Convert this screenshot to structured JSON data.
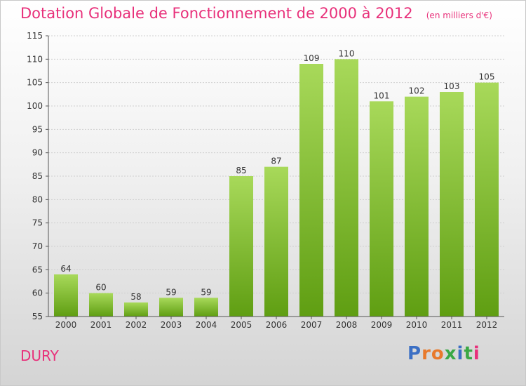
{
  "commune": "DURY",
  "brand": {
    "letters": [
      "P",
      "r",
      "o",
      "x",
      "i",
      "t",
      "i"
    ],
    "colors": [
      "#3b6fc4",
      "#e8792b",
      "#e8792b",
      "#3aa845",
      "#3b6fc4",
      "#3aa845",
      "#e8307a"
    ]
  },
  "colors": {
    "bar_top": "#a8d95a",
    "bar_bottom": "#5f9e12",
    "title": "#e8307a",
    "grid": "#cfcfcf"
  },
  "chart_data": {
    "type": "bar",
    "title": "Dotation Globale de Fonctionnement de 2000 à 2012",
    "subtitle": "(en milliers d'€)",
    "xlabel": "",
    "ylabel": "",
    "categories": [
      "2000",
      "2001",
      "2002",
      "2003",
      "2004",
      "2005",
      "2006",
      "2007",
      "2008",
      "2009",
      "2010",
      "2011",
      "2012"
    ],
    "values": [
      64,
      60,
      58,
      59,
      59,
      85,
      87,
      109,
      110,
      101,
      102,
      103,
      105
    ],
    "ylim": [
      55,
      115
    ],
    "yticks": [
      55,
      60,
      65,
      70,
      75,
      80,
      85,
      90,
      95,
      100,
      105,
      110,
      115
    ],
    "grid": true,
    "legend": "none"
  }
}
